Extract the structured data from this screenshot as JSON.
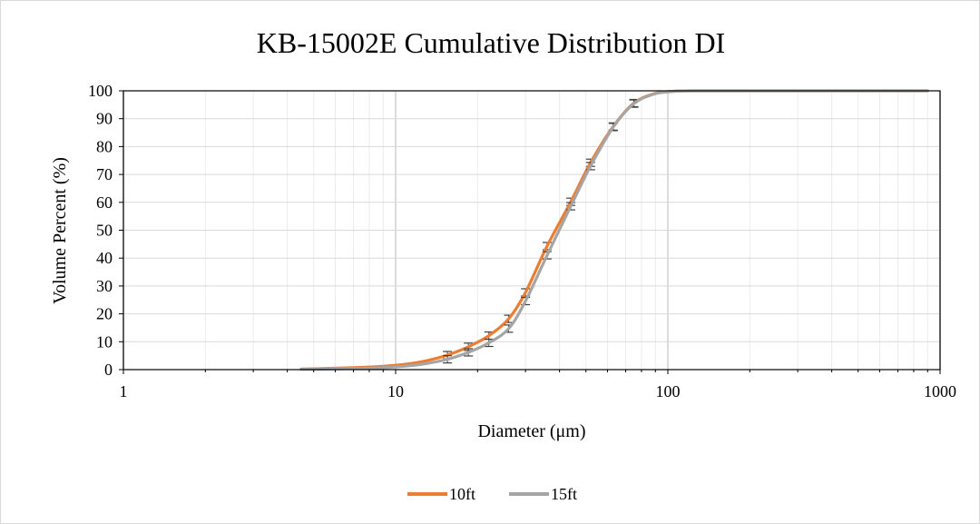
{
  "chart_data": {
    "type": "line",
    "title": "KB-15002E Cumulative Distribution DI",
    "xlabel": "Diameter (μm)",
    "ylabel": "Volume Percent (%)",
    "xscale": "log",
    "xlim": [
      1,
      1000
    ],
    "ylim": [
      0,
      100
    ],
    "x_ticks": [
      1,
      10,
      100,
      1000
    ],
    "x_tick_labels": [
      "1",
      "10",
      "100",
      "1000"
    ],
    "y_ticks": [
      0,
      10,
      20,
      30,
      40,
      50,
      60,
      70,
      80,
      90,
      100
    ],
    "y_tick_labels": [
      "0",
      "10",
      "20",
      "30",
      "40",
      "50",
      "60",
      "70",
      "80",
      "90",
      "100"
    ],
    "grid": true,
    "legend_position": "bottom",
    "series": [
      {
        "name": "10ft",
        "color": "#ED7D31",
        "x": [
          4.5,
          5.5,
          7,
          9,
          11,
          13,
          15.5,
          18.5,
          22,
          26,
          30,
          36,
          44,
          52,
          63,
          75,
          88,
          100,
          120,
          200,
          500,
          900
        ],
        "y": [
          0.2,
          0.4,
          0.7,
          1.2,
          2.0,
          3.2,
          5.2,
          8.2,
          12.2,
          18.2,
          27.7,
          44.3,
          60.2,
          74.2,
          87.2,
          95.6,
          98.8,
          99.7,
          100,
          100,
          100,
          100
        ],
        "error_x": [
          15.5,
          18.5,
          22,
          26,
          30,
          36,
          44,
          52,
          63,
          75
        ],
        "error_y": [
          5.2,
          8.2,
          12.2,
          18.2,
          27.7,
          44.3,
          60.2,
          74.2,
          87.2,
          95.6
        ]
      },
      {
        "name": "15ft",
        "color": "#A5A5A5",
        "x": [
          4.5,
          5.5,
          7,
          9,
          11,
          13,
          15.5,
          18.5,
          22,
          26,
          30,
          36,
          44,
          52,
          63,
          75,
          88,
          100,
          120,
          200,
          500,
          900
        ],
        "y": [
          0.1,
          0.2,
          0.4,
          0.7,
          1.3,
          2.2,
          3.7,
          6.2,
          9.6,
          14.7,
          24.6,
          41.0,
          58.6,
          73.0,
          87.0,
          95.4,
          98.7,
          99.6,
          100,
          100,
          100,
          100
        ],
        "error_x": [
          15.5,
          18.5,
          22,
          26,
          30,
          36,
          44,
          52,
          63,
          75
        ],
        "error_y": [
          3.7,
          6.2,
          9.6,
          14.7,
          24.6,
          41.0,
          58.6,
          73.0,
          87.0,
          95.4
        ]
      }
    ]
  }
}
